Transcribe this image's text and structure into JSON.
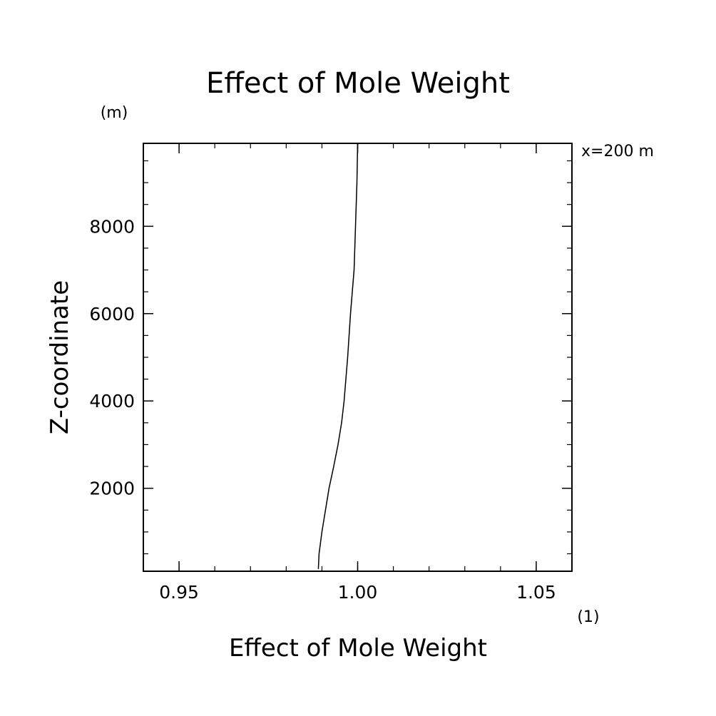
{
  "chart_data": {
    "type": "line",
    "title": "Effect of Mole Weight",
    "xlabel": "Effect of Mole Weight",
    "ylabel": "Z-coordinate",
    "x_unit": "(1)",
    "y_unit": "(m)",
    "annotation": "x=200 m",
    "xlim": [
      0.94,
      1.06
    ],
    "ylim": [
      100,
      9900
    ],
    "x_ticks": [
      {
        "value": 0.95,
        "label": "0.95"
      },
      {
        "value": 1.0,
        "label": "1.00"
      },
      {
        "value": 1.05,
        "label": "1.05"
      }
    ],
    "x_minor_step": 0.01,
    "y_ticks": [
      {
        "value": 2000,
        "label": "2000"
      },
      {
        "value": 4000,
        "label": "4000"
      },
      {
        "value": 6000,
        "label": "6000"
      },
      {
        "value": 8000,
        "label": "8000"
      }
    ],
    "y_minor_step": 500,
    "grid": false,
    "series": [
      {
        "x": [
          0.989,
          0.9892,
          0.99,
          0.991,
          0.992,
          0.9933,
          0.9945,
          0.9955,
          0.9962,
          0.9967,
          0.9972,
          0.9976,
          0.998,
          0.9985,
          0.999,
          0.9994,
          0.9998,
          1.0
        ],
        "y": [
          150,
          500,
          1000,
          1500,
          2000,
          2500,
          3000,
          3500,
          4000,
          4500,
          5000,
          5500,
          6000,
          6500,
          7000,
          8000,
          9000,
          9900
        ]
      }
    ]
  }
}
